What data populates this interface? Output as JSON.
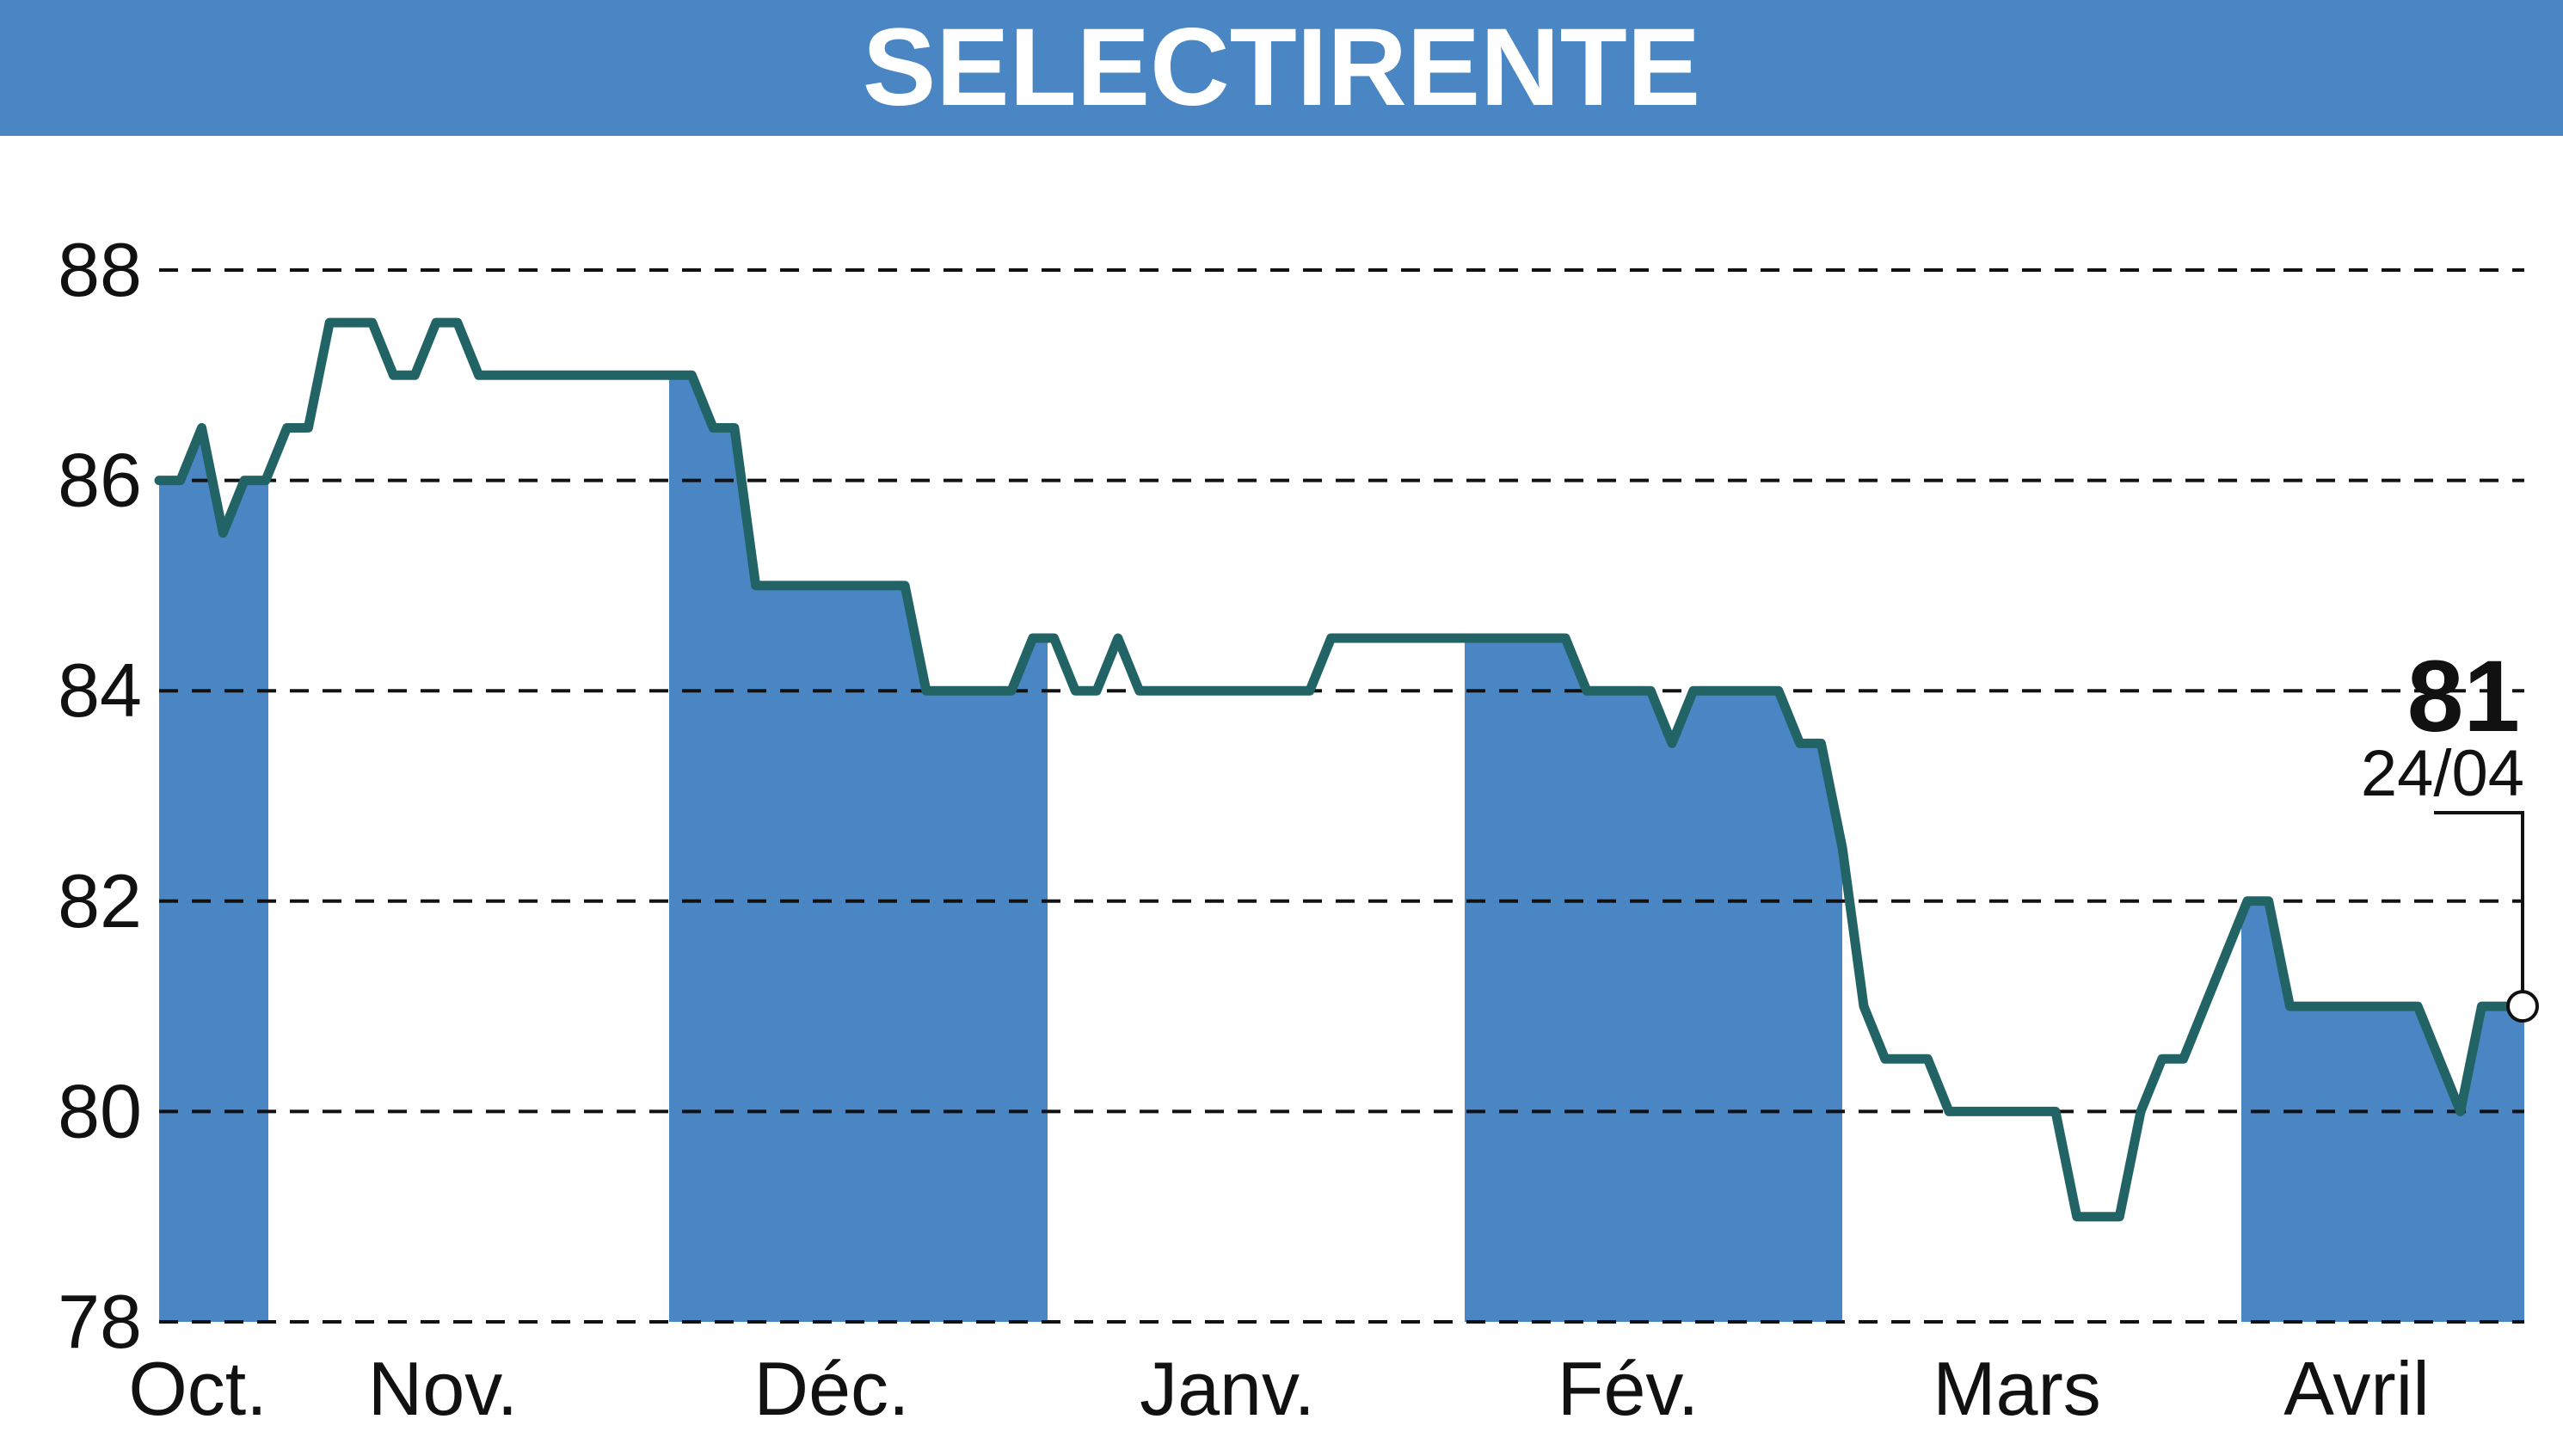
{
  "header": {
    "title": "SELECTIRENTE"
  },
  "colors": {
    "header_bg": "#4a86c4",
    "band_fill": "#4a86c4",
    "line": "#226466",
    "grid": "#111111",
    "text": "#111111"
  },
  "chart_data": {
    "type": "line",
    "title": "SELECTIRENTE",
    "xlabel": "",
    "ylabel": "",
    "ylim": [
      78,
      88
    ],
    "yticks": [
      "78",
      "80",
      "82",
      "84",
      "86",
      "88"
    ],
    "grid": true,
    "month_labels": [
      "Oct.",
      "Nov.",
      "Déc.",
      "Janv.",
      "Fév.",
      "Mars",
      "Avril"
    ],
    "shaded_months": [
      "Oct.",
      "Déc.",
      "Fév.",
      "Avril"
    ],
    "last_value": "81",
    "last_date": "24/04",
    "series": [
      {
        "values": [
          86,
          86,
          86.5,
          85.5,
          86,
          86,
          86.5,
          86.5,
          87.5,
          87.5,
          87.5,
          87,
          87,
          87.5,
          87.5,
          87,
          87,
          87,
          87,
          87,
          87,
          87,
          87,
          87,
          87,
          87,
          86.5,
          86.5,
          85,
          85,
          85,
          85,
          85,
          85,
          85,
          85,
          84,
          84,
          84,
          84,
          84,
          84.5,
          84.5,
          84,
          84,
          84.5,
          84,
          84,
          84,
          84,
          84,
          84,
          84,
          84,
          84,
          84.5,
          84.5,
          84.5,
          84.5,
          84.5,
          84.5,
          84.5,
          84.5,
          84.5,
          84.5,
          84.5,
          84.5,
          84,
          84,
          84,
          84,
          83.5,
          84,
          84,
          84,
          84,
          84,
          83.5,
          83.5,
          82.5,
          81,
          80.5,
          80.5,
          80.5,
          80,
          80,
          80,
          80,
          80,
          80,
          79,
          79,
          79,
          80,
          80.5,
          80.5,
          81,
          81.5,
          82,
          82,
          81,
          81,
          81,
          81,
          81,
          81,
          81,
          80.5,
          80,
          81,
          81,
          81
        ]
      }
    ]
  }
}
